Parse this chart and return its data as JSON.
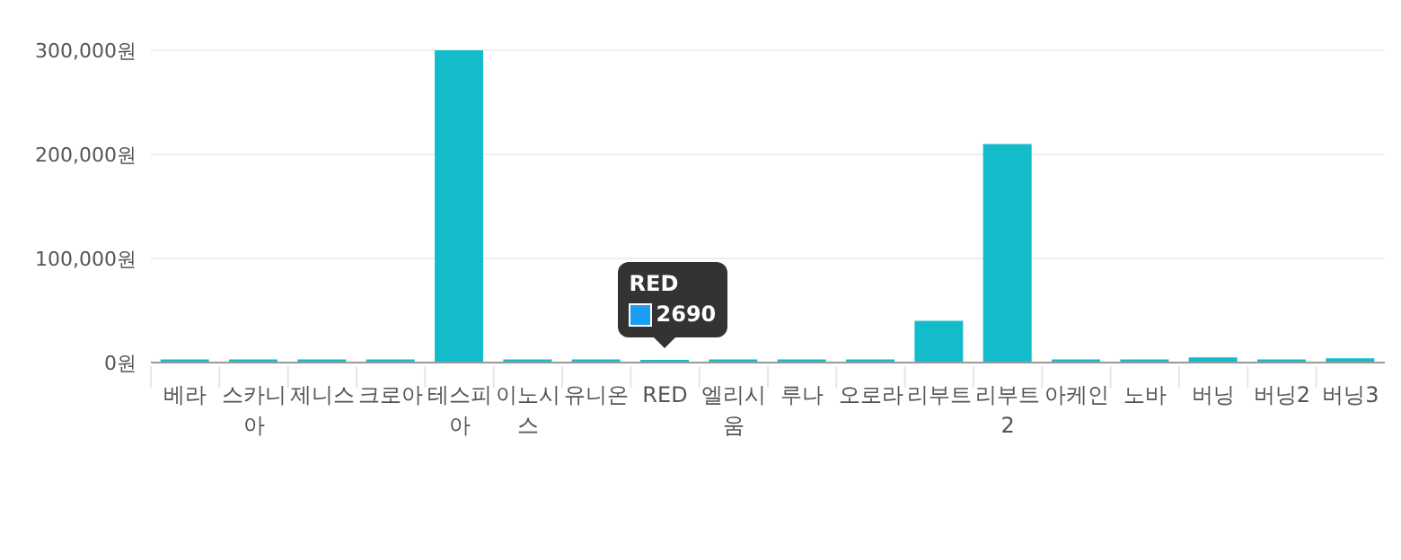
{
  "chart_data": {
    "type": "bar",
    "categories": [
      "베라",
      "스카니아",
      "제니스",
      "크로아",
      "테스피아",
      "이노시스",
      "유니온",
      "RED",
      "엘리시움",
      "루나",
      "오로라",
      "리부트",
      "리부트2",
      "아케인",
      "노바",
      "버닝",
      "버닝2",
      "버닝3"
    ],
    "values": [
      3000,
      3000,
      3000,
      3000,
      300000,
      3000,
      3000,
      2690,
      3000,
      3000,
      3000,
      40000,
      210000,
      3000,
      3000,
      5000,
      3000,
      4000
    ],
    "color": "#14bccb",
    "ylim": [
      0,
      300000
    ],
    "yticks": [
      {
        "value": 0,
        "label": "0원"
      },
      {
        "value": 100000,
        "label": "100,000원"
      },
      {
        "value": 200000,
        "label": "200,000원"
      },
      {
        "value": 300000,
        "label": "300,000원"
      }
    ],
    "grid": "y",
    "annotations": [
      {
        "text": "2690",
        "x": "RED",
        "y": 2690
      }
    ]
  }
}
